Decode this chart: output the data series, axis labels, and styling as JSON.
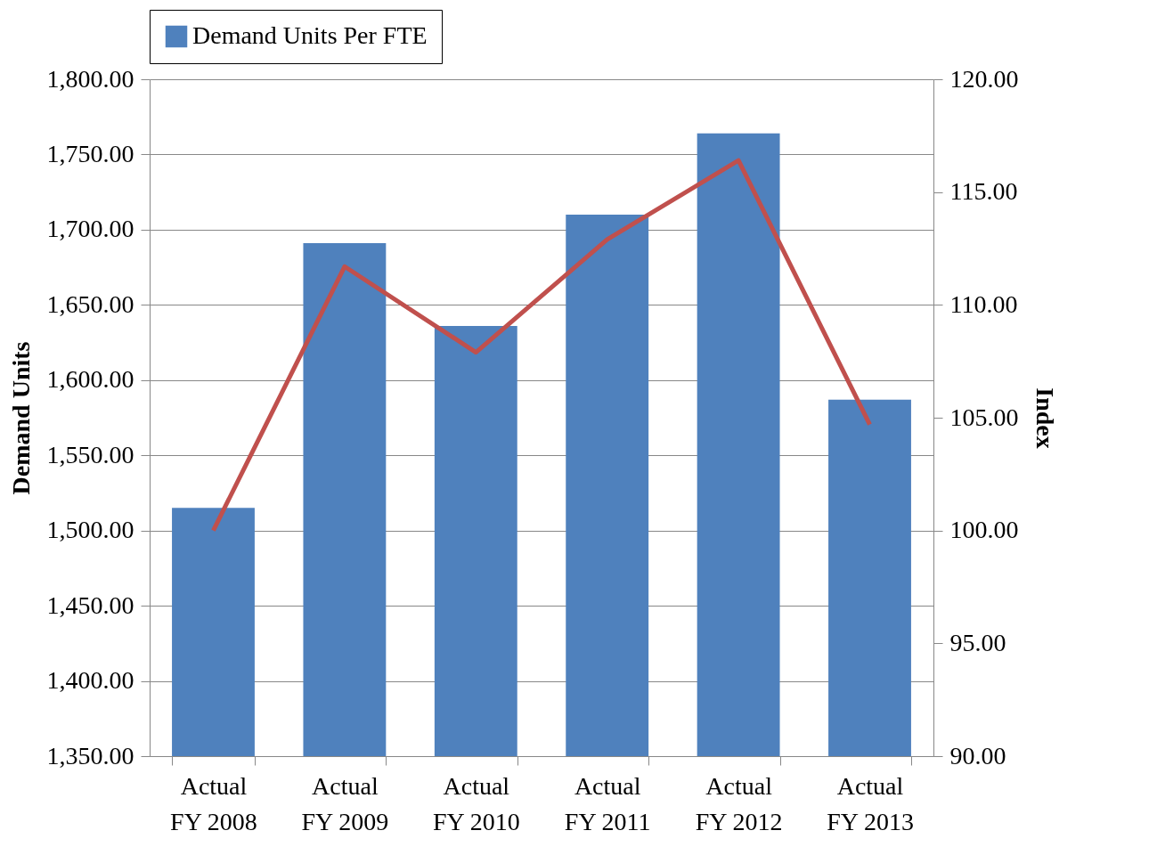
{
  "chart_data": {
    "type": "bar",
    "ylabel": "Demand Units",
    "y2label": "Index",
    "categories": [
      "Actual FY 2008",
      "Actual FY 2009",
      "Actual FY 2010",
      "Actual FY 2011",
      "Actual FY 2012",
      "Actual FY 2013"
    ],
    "series": [
      {
        "name": "Demand Units Per FTE",
        "color": "#4f81bd",
        "values": [
          1515,
          1691,
          1636,
          1710,
          1764,
          1587
        ]
      },
      {
        "type": "line",
        "axis": "y2",
        "color": "#c0504d",
        "values": [
          100,
          111.7,
          107.9,
          112.9,
          116.4,
          104.7
        ]
      }
    ],
    "ylim": [
      1350,
      1800
    ],
    "yticks": [
      {
        "value": 1350,
        "label": "1,350.00"
      },
      {
        "value": 1400,
        "label": "1,400.00"
      },
      {
        "value": 1450,
        "label": "1,450.00"
      },
      {
        "value": 1500,
        "label": "1,500.00"
      },
      {
        "value": 1550,
        "label": "1,550.00"
      },
      {
        "value": 1600,
        "label": "1,600.00"
      },
      {
        "value": 1650,
        "label": "1,650.00"
      },
      {
        "value": 1700,
        "label": "1,700.00"
      },
      {
        "value": 1750,
        "label": "1,750.00"
      },
      {
        "value": 1800,
        "label": "1,800.00"
      }
    ],
    "y2lim": [
      90,
      120
    ],
    "y2ticks": [
      {
        "value": 90,
        "label": "90.00"
      },
      {
        "value": 95,
        "label": "95.00"
      },
      {
        "value": 100,
        "label": "100.00"
      },
      {
        "value": 105,
        "label": "105.00"
      },
      {
        "value": 110,
        "label": "110.00"
      },
      {
        "value": 115,
        "label": "115.00"
      },
      {
        "value": 120,
        "label": "120.00"
      }
    ],
    "grid": "y",
    "legend": "top"
  }
}
